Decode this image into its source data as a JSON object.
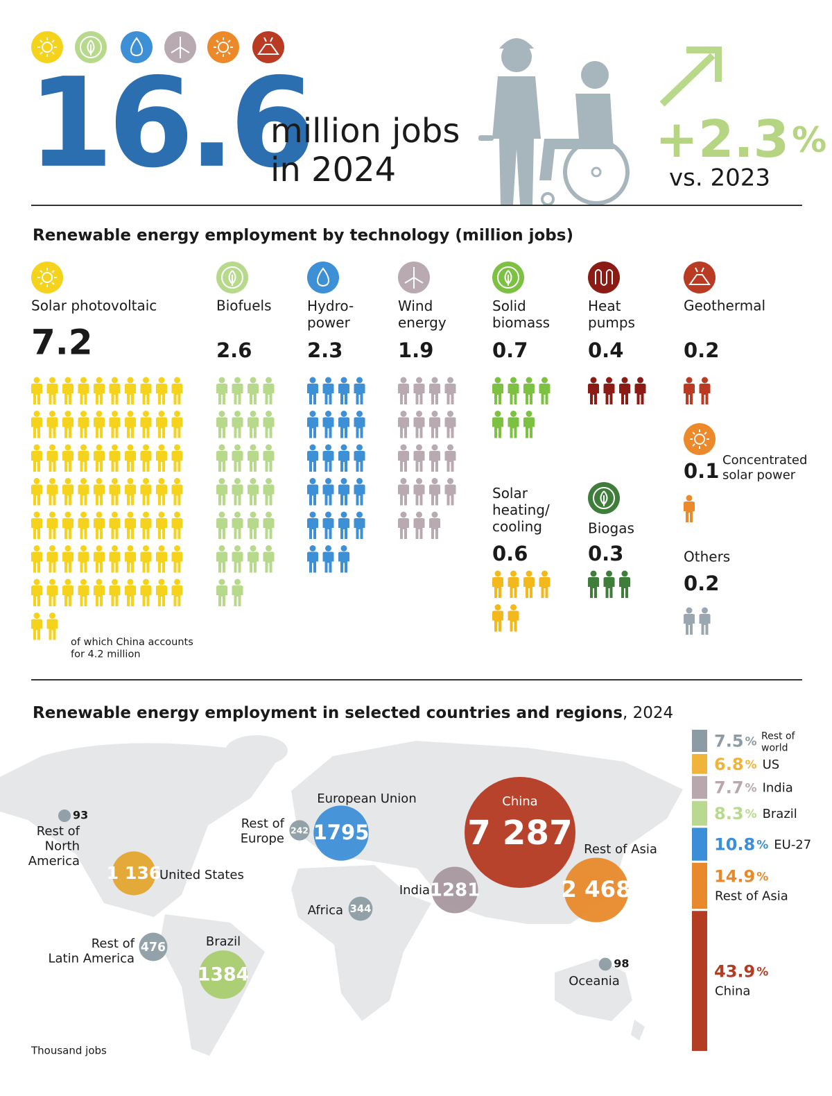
{
  "header": {
    "total": 16.6,
    "total_unit": "million jobs",
    "year_text": "in 2024",
    "change": "+2.3",
    "change_unit": "%",
    "comparison": "vs. 2023"
  },
  "chart_data": [
    {
      "type": "pictogram",
      "title": "Renewable energy employment by technology (million jobs)",
      "categories": [
        "Solar photovoltaic",
        "Biofuels",
        "Hydro-\npower",
        "Wind\nenergy",
        "Solid\nbiomass",
        "Heat\npumps",
        "Geothermal",
        "Solar\nheating/\ncooling",
        "Biogas",
        "Concentrated\nsolar power",
        "Others"
      ],
      "values": [
        7.2,
        2.6,
        2.3,
        1.9,
        0.7,
        0.4,
        0.2,
        0.6,
        0.3,
        0.1,
        0.2
      ],
      "colors": [
        "#f5d21c",
        "#b6d98c",
        "#3d8fd6",
        "#b9aab2",
        "#7dc142",
        "#8b1c15",
        "#b93b23",
        "#f3b91c",
        "#3f7d3a",
        "#ec8a2b",
        "#9aa7b0"
      ],
      "annotation": "of which China accounts\nfor 4.2 million"
    },
    {
      "type": "bubble",
      "title": "Renewable energy employment in selected countries and regions",
      "subtitle": ", 2024",
      "categories": [
        "Rest of\nNorth\nAmerica",
        "United States",
        "Rest of\nLatin America",
        "Brazil",
        "Rest of\nEurope",
        "European Union",
        "Africa",
        "India",
        "China",
        "Rest of Asia",
        "Oceania"
      ],
      "values": [
        93,
        1136,
        476,
        1384,
        242,
        1795,
        344,
        1281,
        7287,
        2468,
        98
      ],
      "value_labels": [
        "93",
        "1 136",
        "476",
        "1384",
        "242",
        "1795",
        "344",
        "1281",
        "7 287",
        "2 468",
        "98"
      ],
      "colors": [
        "#8d9ca4",
        "#e3a72f",
        "#8d9ca4",
        "#a9cc6f",
        "#8d9ca4",
        "#3f8fd8",
        "#8d9ca4",
        "#a8979f",
        "#b53a23",
        "#e88a2c",
        "#8d9ca4"
      ],
      "note": "Thousand jobs"
    },
    {
      "type": "stacked-bar",
      "unit": "%",
      "categories": [
        "Rest of\nworld",
        "US",
        "India",
        "Brazil",
        "EU-27",
        "Rest of Asia",
        "China"
      ],
      "values": [
        7.5,
        6.8,
        7.7,
        8.3,
        10.8,
        14.9,
        43.9
      ],
      "colors": [
        "#8d9ca4",
        "#f0b43a",
        "#b8a8ae",
        "#b9d990",
        "#3b8ed8",
        "#e88a2c",
        "#b43c23"
      ]
    }
  ]
}
